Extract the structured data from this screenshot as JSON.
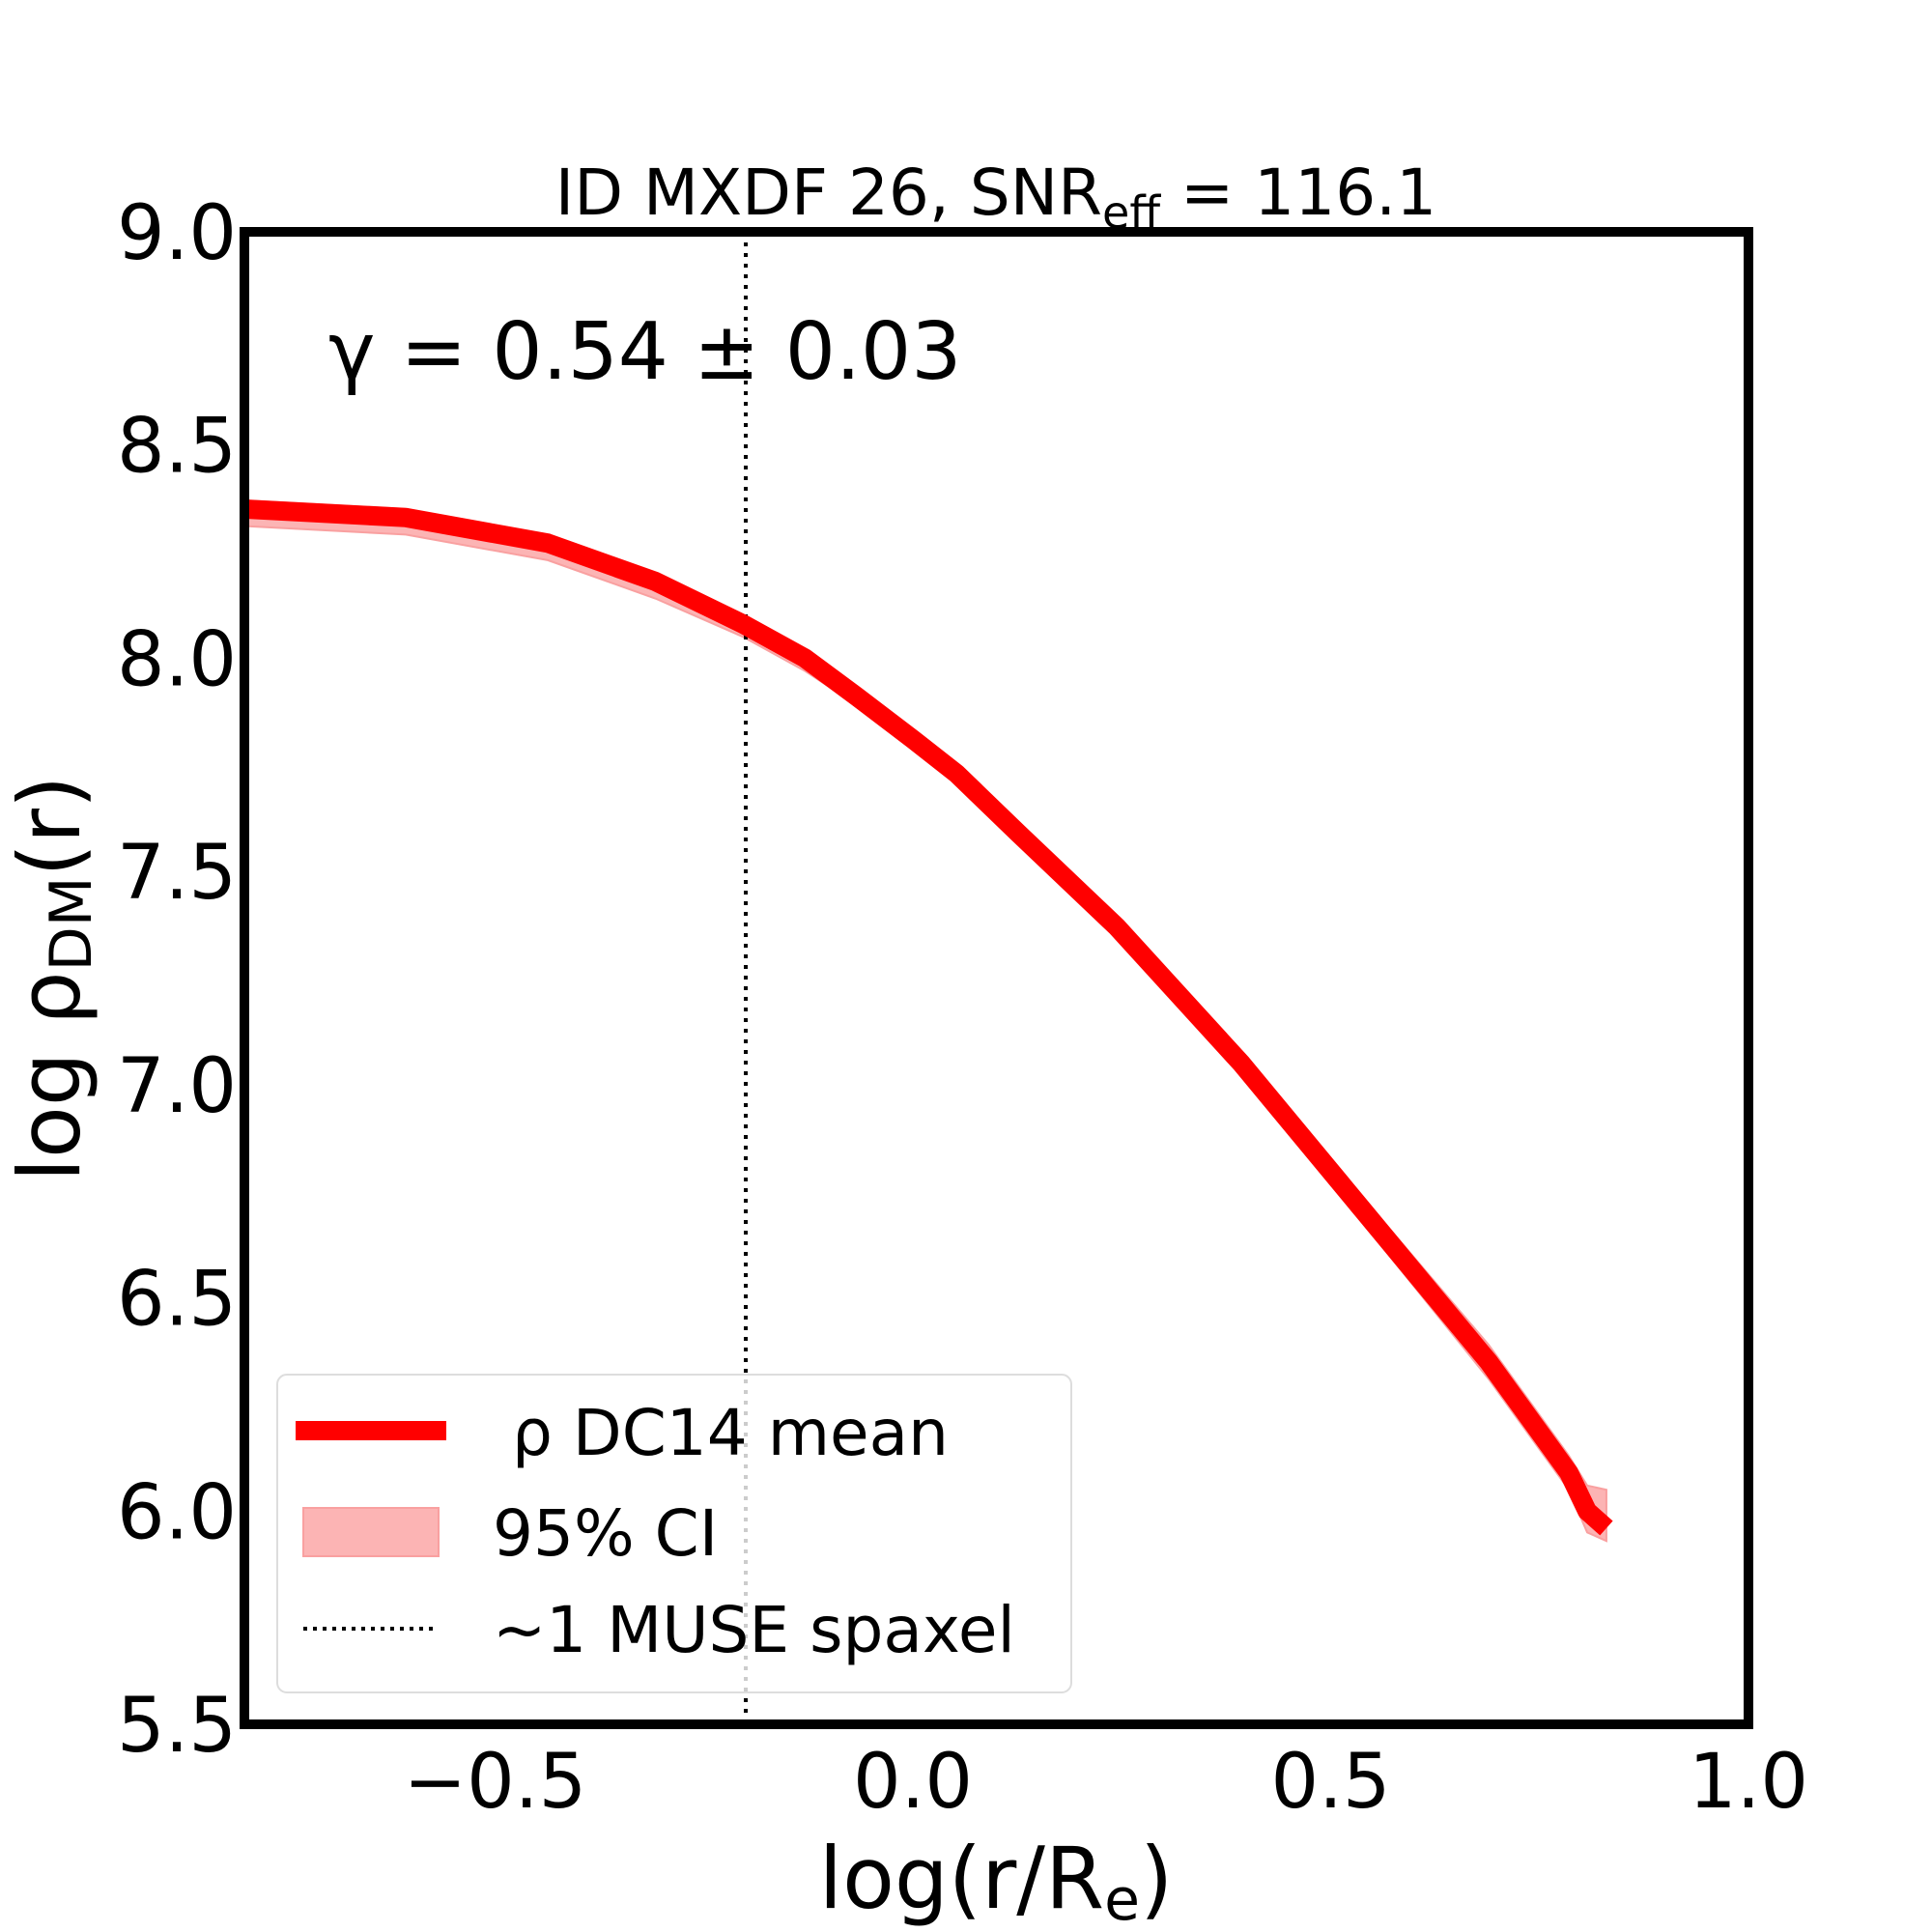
{
  "chart_data": {
    "type": "line",
    "title": "ID MXDF 26, SNR",
    "title_subscript": "eff",
    "title_suffix": " = 116.1",
    "xlabel": "log(r/R",
    "xlabel_subscript": "e",
    "xlabel_suffix": ")",
    "ylabel": "log ρ",
    "ylabel_subscript": "DM",
    "ylabel_suffix": "(r)",
    "xlim": [
      -0.8,
      1.0
    ],
    "ylim": [
      5.5,
      9.0
    ],
    "xticks": [
      -0.5,
      0.0,
      0.5,
      1.0
    ],
    "xtick_labels": [
      "−0.5",
      "0.0",
      "0.5",
      "1.0"
    ],
    "yticks": [
      5.5,
      6.0,
      6.5,
      7.0,
      7.5,
      8.0,
      8.5,
      9.0
    ],
    "ytick_labels": [
      "5.5",
      "6.0",
      "6.5",
      "7.0",
      "7.5",
      "8.0",
      "8.5",
      "9.0"
    ],
    "grid": false,
    "annotation": "γ = 0.54 ± 0.03",
    "vline": {
      "x": -0.2,
      "style": "dotted",
      "color": "#000000"
    },
    "series": [
      {
        "name": "ρ DC14 mean",
        "color": "#ff0000",
        "x": [
          -0.8,
          -0.607,
          -0.437,
          -0.308,
          -0.203,
          -0.129,
          -0.067,
          0.0,
          0.052,
          0.126,
          0.244,
          0.393,
          0.541,
          0.689,
          0.785,
          0.807,
          0.83
        ],
        "y": [
          8.35,
          8.33,
          8.27,
          8.18,
          8.08,
          8.0,
          7.91,
          7.81,
          7.73,
          7.59,
          7.37,
          7.05,
          6.7,
          6.35,
          6.09,
          6.0,
          5.96
        ]
      }
    ],
    "ci": {
      "name": "95% CI",
      "color": "#fcb4b4",
      "lower": [
        8.31,
        8.29,
        8.23,
        8.14,
        8.05,
        7.97,
        7.89,
        7.8,
        7.72,
        7.58,
        7.36,
        7.03,
        6.67,
        6.31,
        6.05,
        5.95,
        5.93
      ],
      "upper": [
        8.37,
        8.35,
        8.29,
        8.2,
        8.1,
        8.01,
        7.92,
        7.82,
        7.74,
        7.6,
        7.38,
        7.07,
        6.73,
        6.39,
        6.13,
        6.06,
        6.05
      ]
    },
    "legend": {
      "position": "lower-left",
      "entries": [
        "ρ DC14 mean",
        "95% CI",
        "~1 MUSE spaxel"
      ]
    }
  }
}
